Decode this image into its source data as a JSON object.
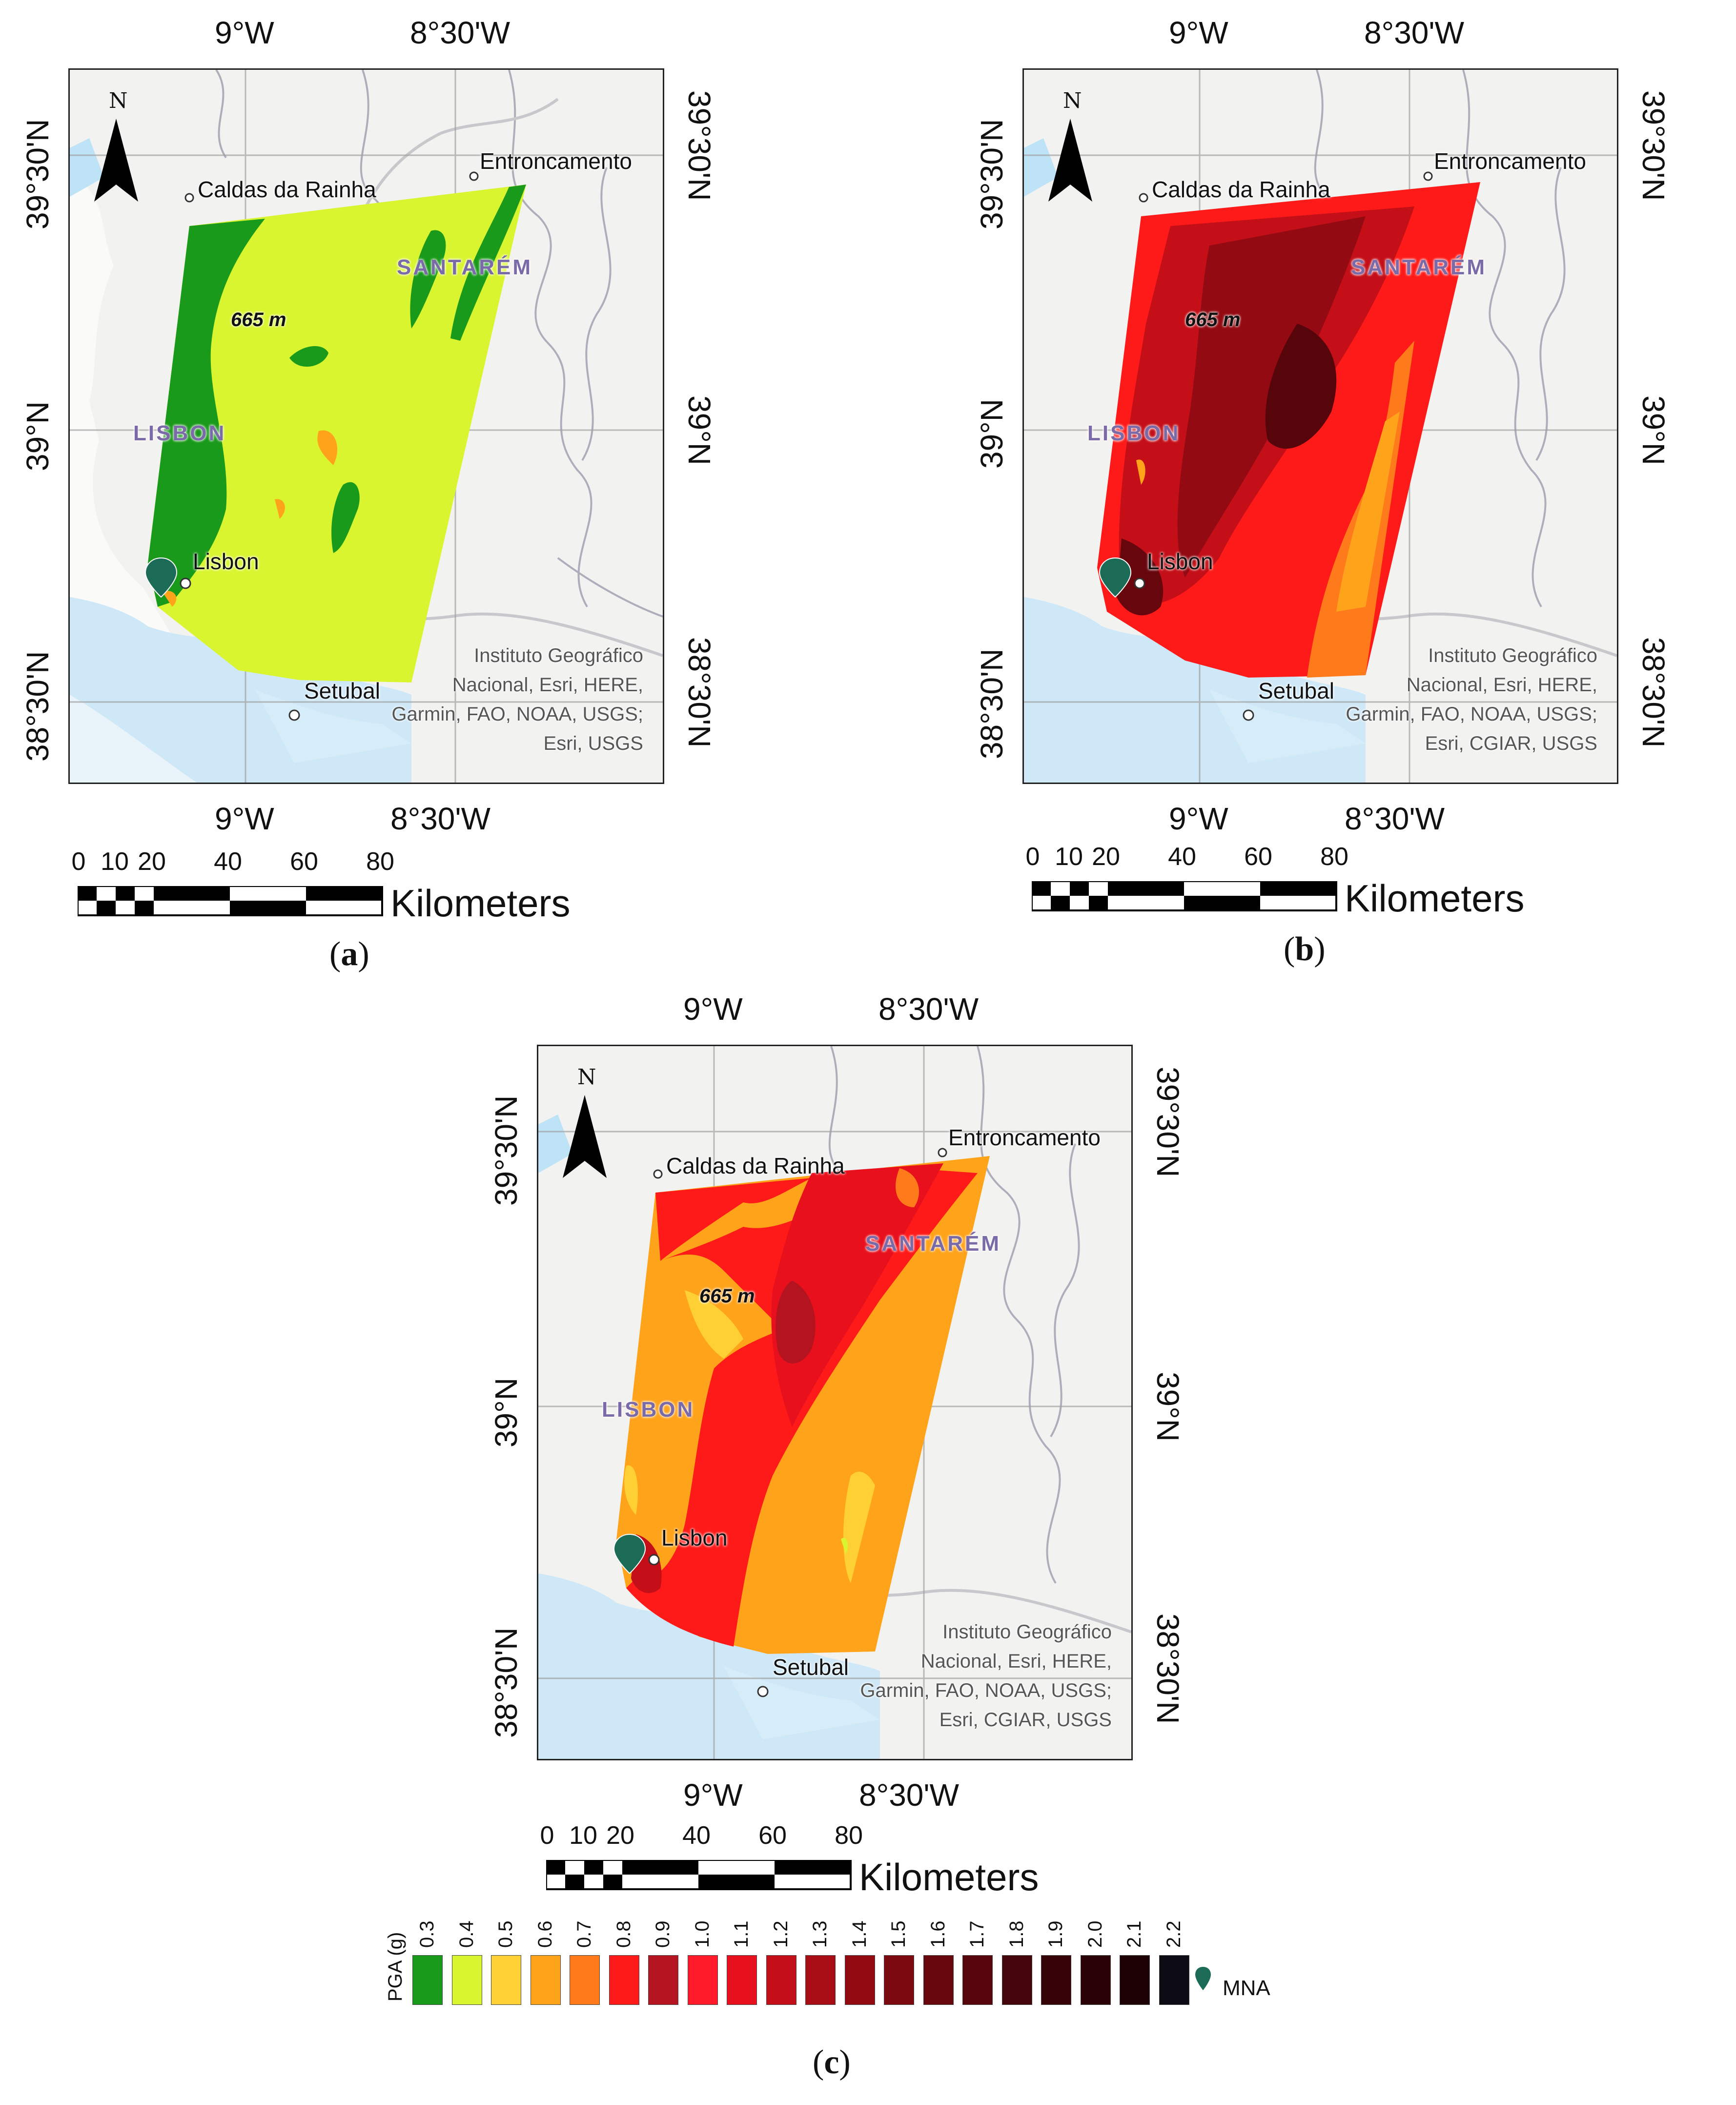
{
  "panels": [
    {
      "id": "a",
      "caption_open": "(",
      "caption_letter": "a",
      "caption_close": ")",
      "top_lon": [
        "9°W",
        "8°30'W"
      ],
      "bottom_lon": [
        "9°W",
        "8°30'W"
      ],
      "left_lat": [
        "39°30'N",
        "39°N",
        "38°30'N"
      ],
      "right_lat": [
        "39°30'N",
        "39°N",
        "38°30'N"
      ],
      "north": "N",
      "cities": [
        "Caldas da Rainha",
        "Entroncamento",
        "Lisbon",
        "Setubal"
      ],
      "regions": [
        "SANTARÉM",
        "LISBON"
      ],
      "elevation": "665 m",
      "attribution": [
        "Instituto Geográfico",
        "Nacional, Esri, HERE,",
        "Garmin, FAO, NOAA, USGS;",
        "Esri, USGS"
      ]
    },
    {
      "id": "b",
      "caption_open": "(",
      "caption_letter": "b",
      "caption_close": ")",
      "top_lon": [
        "9°W",
        "8°30'W"
      ],
      "bottom_lon": [
        "9°W",
        "8°30'W"
      ],
      "left_lat": [
        "39°30'N",
        "39°N",
        "38°30'N"
      ],
      "right_lat": [
        "39°30'N",
        "39°N",
        "38°30'N"
      ],
      "north": "N",
      "cities": [
        "Caldas da Rainha",
        "Entroncamento",
        "Lisbon",
        "Setubal"
      ],
      "regions": [
        "SANTARÉM",
        "LISBON"
      ],
      "elevation": "665 m",
      "attribution": [
        "Instituto Geográfico",
        "Nacional, Esri, HERE,",
        "Garmin, FAO, NOAA, USGS;",
        "Esri, CGIAR, USGS"
      ]
    },
    {
      "id": "c",
      "caption_open": "(",
      "caption_letter": "c",
      "caption_close": ")",
      "top_lon": [
        "9°W",
        "8°30'W"
      ],
      "bottom_lon": [
        "9°W",
        "8°30'W"
      ],
      "left_lat": [
        "39°30'N",
        "39°N",
        "38°30'N"
      ],
      "right_lat": [
        "39°30'N",
        "39°N",
        "38°30'N"
      ],
      "north": "N",
      "cities": [
        "Caldas da Rainha",
        "Entroncamento",
        "Lisbon",
        "Setubal"
      ],
      "regions": [
        "SANTARÉM",
        "LISBON"
      ],
      "elevation": "665 m",
      "attribution": [
        "Instituto Geográfico",
        "Nacional, Esri, HERE,",
        "Garmin, FAO, NOAA, USGS;",
        "Esri, CGIAR, USGS"
      ]
    }
  ],
  "scale_bar": {
    "ticks": [
      "0",
      "10",
      "20",
      "40",
      "60",
      "80"
    ],
    "unit": "Kilometers"
  },
  "legend": {
    "title": "PGA (g)",
    "marker_label": "MNA",
    "marker_color": "#1b6b57",
    "classes": [
      {
        "value": "0.3",
        "color": "#1a9a1a"
      },
      {
        "value": "0.4",
        "color": "#d8f530"
      },
      {
        "value": "0.5",
        "color": "#ffd034"
      },
      {
        "value": "0.6",
        "color": "#ffa31a"
      },
      {
        "value": "0.7",
        "color": "#ff7a1a"
      },
      {
        "value": "0.8",
        "color": "#ff1a1a"
      },
      {
        "value": "0.9",
        "color": "#b3141f"
      },
      {
        "value": "1.0",
        "color": "#ff1a2a"
      },
      {
        "value": "1.1",
        "color": "#e8101c"
      },
      {
        "value": "1.2",
        "color": "#c40f18"
      },
      {
        "value": "1.3",
        "color": "#a80c14"
      },
      {
        "value": "1.4",
        "color": "#940a12"
      },
      {
        "value": "1.5",
        "color": "#7c0810"
      },
      {
        "value": "1.6",
        "color": "#68060d"
      },
      {
        "value": "1.7",
        "color": "#56050b"
      },
      {
        "value": "1.8",
        "color": "#45040a"
      },
      {
        "value": "1.9",
        "color": "#360308"
      },
      {
        "value": "2.0",
        "color": "#2a0206"
      },
      {
        "value": "2.1",
        "color": "#1e0104"
      },
      {
        "value": "2.2",
        "color": "#0d0c14"
      }
    ]
  }
}
